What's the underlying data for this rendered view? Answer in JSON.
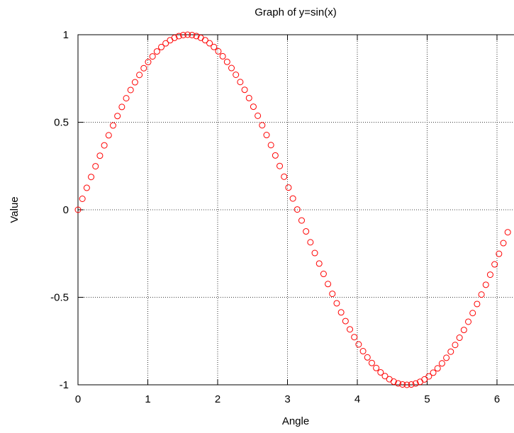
{
  "chart_data": {
    "type": "scatter",
    "title": "Graph of y=sin(x)",
    "xlabel": "Angle",
    "ylabel": "Value",
    "xlim": [
      0,
      6.2
    ],
    "ylim": [
      -1,
      1
    ],
    "x_ticks": [
      "0",
      "1",
      "2",
      "3",
      "4",
      "5",
      "6"
    ],
    "y_ticks": [
      "1",
      "0.5",
      "0",
      "-0.5",
      "-1"
    ],
    "grid": true,
    "marker": "open-circle",
    "color": "#ff0000",
    "series": [
      {
        "x_start": 0,
        "x_step": 0.0628,
        "count": 100,
        "function": "sin(x)"
      }
    ]
  }
}
